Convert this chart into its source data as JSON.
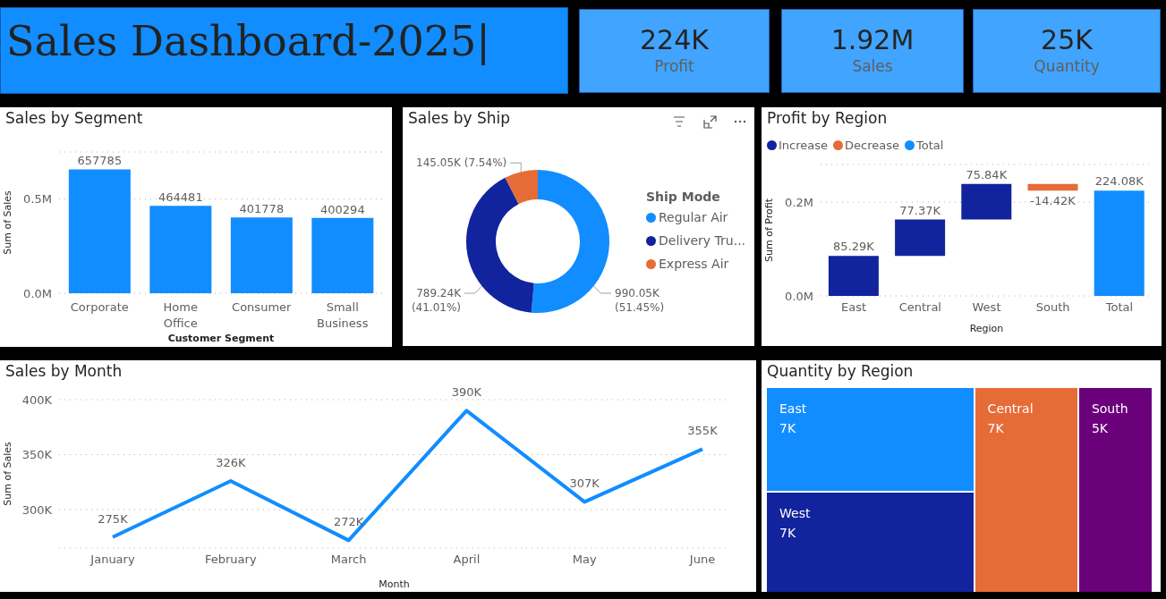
{
  "chart_data": [
    {
      "type": "other",
      "title": "Sales Dashboard-2025|",
      "categories": [
        "Profit",
        "Sales",
        "Quantity"
      ],
      "value_labels": [
        "224K",
        "1.92M",
        "25K"
      ],
      "color": "#41a4ff"
    },
    {
      "type": "bar",
      "title": "Sales by Segment",
      "xlabel": "Customer Segment",
      "ylabel": "Sum of Sales",
      "categories": [
        "Corporate",
        "Home Office",
        "Consumer",
        "Small Business"
      ],
      "values": [
        657785,
        464481,
        401778,
        400294
      ],
      "color": "#118dff",
      "ylim": [
        0,
        750000
      ],
      "yticks": [
        {
          "value": 0,
          "label": "0.0M"
        },
        {
          "value": 500000,
          "label": "0.5M"
        }
      ],
      "grid": "y",
      "data_labels": true
    },
    {
      "type": "donut",
      "title": "Sales by Ship",
      "legend_title": "Ship Mode",
      "categories": [
        "Regular Air",
        "Delivery Tru...",
        "Express Air"
      ],
      "values": [
        990050,
        789240,
        145050
      ],
      "colors": [
        "#118dff",
        "#12239e",
        "#e66c37"
      ],
      "value_labels": [
        "990.05K (51.45%)",
        "789.24K (41.01%)",
        "145.05K (7.54%)"
      ],
      "legend": "right"
    },
    {
      "type": "bar",
      "title": "Profit by Region",
      "xlabel": "Region",
      "ylabel": "Sum of Profit",
      "categories": [
        "East",
        "Central",
        "West",
        "South",
        "Total"
      ],
      "series": [
        {
          "name": "Increase",
          "color": "#12239e",
          "values": [
            85290,
            77370,
            75840,
            null,
            null
          ],
          "base": [
            0,
            85290,
            162660,
            null,
            null
          ]
        },
        {
          "name": "Decrease",
          "color": "#e66c37",
          "values": [
            null,
            null,
            null,
            -14420,
            null
          ],
          "base": [
            null,
            null,
            null,
            238500,
            null
          ]
        },
        {
          "name": "Total",
          "color": "#118dff",
          "values": [
            null,
            null,
            null,
            null,
            224080
          ],
          "base": [
            null,
            null,
            null,
            null,
            0
          ]
        }
      ],
      "value_labels": [
        "85.29K",
        "77.37K",
        "75.84K",
        "-14.42K",
        "224.08K"
      ],
      "ylim": [
        0,
        280000
      ],
      "yticks": [
        {
          "value": 0,
          "label": "0.0M"
        },
        {
          "value": 200000,
          "label": "0.2M"
        }
      ],
      "grid": "y",
      "legend": "top left"
    },
    {
      "type": "line",
      "title": "Sales by Month",
      "xlabel": "Month",
      "ylabel": "Sum of Sales",
      "categories": [
        "January",
        "February",
        "March",
        "April",
        "May",
        "June"
      ],
      "values": [
        275000,
        326000,
        272000,
        390000,
        307000,
        355000
      ],
      "value_labels": [
        "275K",
        "326K",
        "272K",
        "390K",
        "307K",
        "355K"
      ],
      "color": "#118dff",
      "ylim": [
        265000,
        400000
      ],
      "yticks": [
        {
          "value": 300000,
          "label": "300K"
        },
        {
          "value": 350000,
          "label": "350K"
        },
        {
          "value": 400000,
          "label": "400K"
        }
      ],
      "grid": "y",
      "marker": "none"
    },
    {
      "type": "other",
      "title": "Quantity by Region",
      "categories": [
        "East",
        "West",
        "Central",
        "South"
      ],
      "values": [
        7000,
        7000,
        7000,
        5000
      ],
      "value_labels": [
        "7K",
        "7K",
        "7K",
        "5K"
      ],
      "colors": [
        "#118dff",
        "#12239e",
        "#e66c37",
        "#6b007b"
      ]
    }
  ]
}
